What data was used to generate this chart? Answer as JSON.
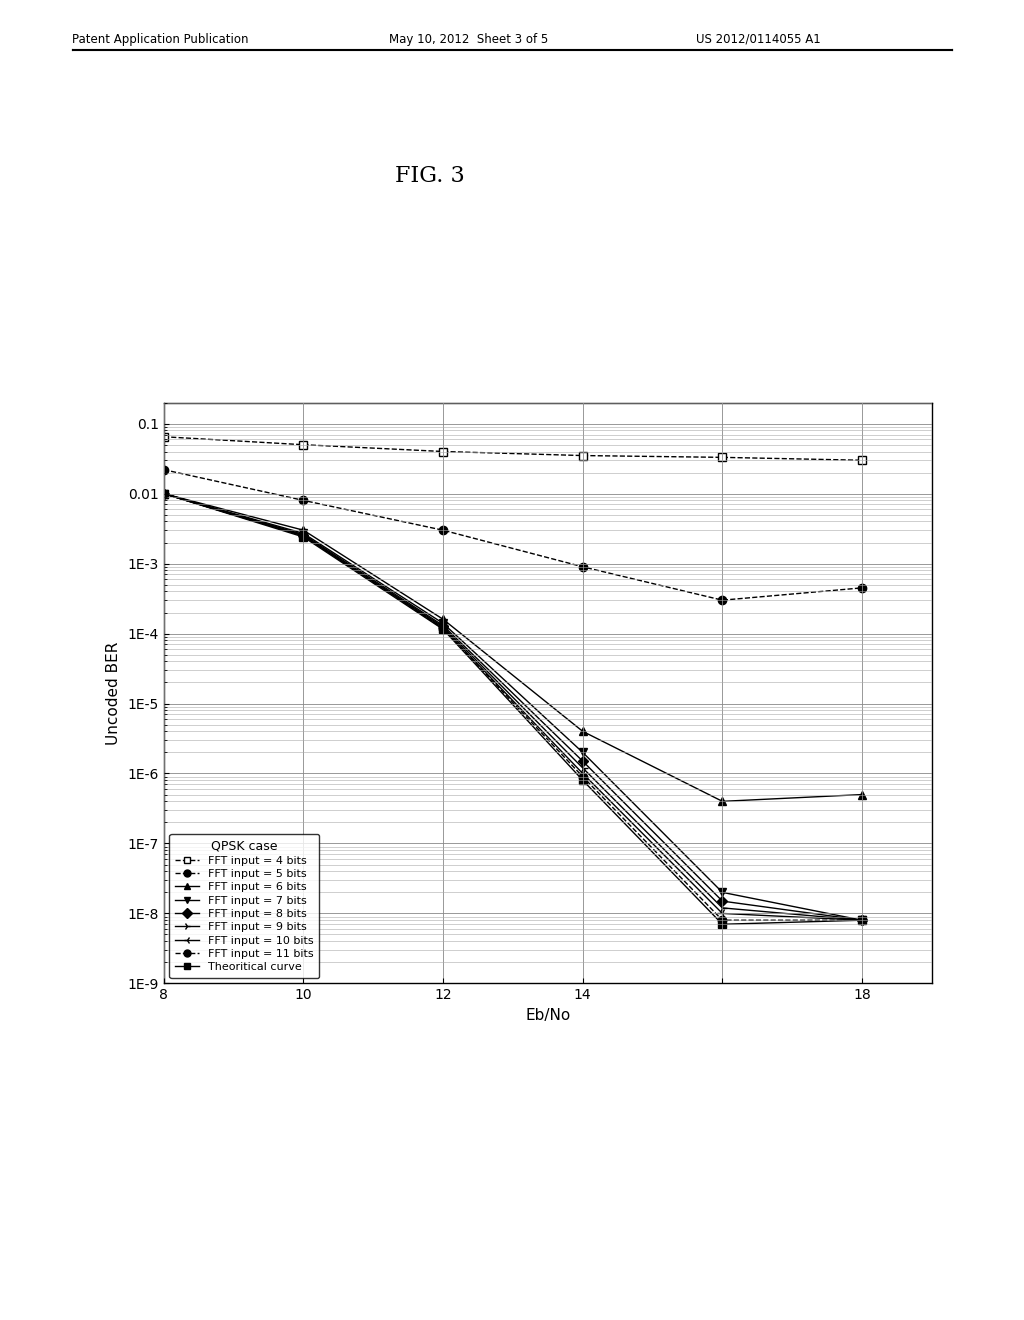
{
  "title": "FIG. 3",
  "header_left": "Patent Application Publication",
  "header_center": "May 10, 2012  Sheet 3 of 5",
  "header_right": "US 2012/0114055 A1",
  "xlabel": "Eb/No",
  "ylabel": "Uncoded BER",
  "xmin": 8,
  "xmax": 19,
  "ymin": 1e-09,
  "ymax": 0.2,
  "legend_title": "QPSK case",
  "series_data": {
    "FFT input = 4 bits": {
      "x": [
        8,
        10,
        12,
        14,
        16,
        18
      ],
      "y": [
        0.065,
        0.05,
        0.04,
        0.035,
        0.033,
        0.03
      ]
    },
    "FFT input = 5 bits": {
      "x": [
        8,
        10,
        12,
        14,
        16,
        18
      ],
      "y": [
        0.022,
        0.008,
        0.003,
        0.0009,
        0.0003,
        0.00045
      ]
    },
    "FFT input = 6 bits": {
      "x": [
        8,
        10,
        12,
        14,
        16,
        18
      ],
      "y": [
        0.01,
        0.003,
        0.00016,
        4e-06,
        4e-07,
        5e-07
      ]
    },
    "FFT input = 7 bits": {
      "x": [
        8,
        10,
        12,
        14,
        16,
        18
      ],
      "y": [
        0.01,
        0.0027,
        0.00014,
        2e-06,
        2e-08,
        8e-09
      ]
    },
    "FFT input = 8 bits": {
      "x": [
        8,
        10,
        12,
        14,
        16,
        18
      ],
      "y": [
        0.01,
        0.0026,
        0.00013,
        1.5e-06,
        1.5e-08,
        8e-09
      ]
    },
    "FFT input = 9 bits": {
      "x": [
        8,
        10,
        12,
        14,
        16,
        18
      ],
      "y": [
        0.01,
        0.0025,
        0.000125,
        1.2e-06,
        1.2e-08,
        8e-09
      ]
    },
    "FFT input = 10 bits": {
      "x": [
        8,
        10,
        12,
        14,
        16,
        18
      ],
      "y": [
        0.01,
        0.0025,
        0.00012,
        1e-06,
        1e-08,
        8e-09
      ]
    },
    "FFT input = 11 bits": {
      "x": [
        8,
        10,
        12,
        14,
        16,
        18
      ],
      "y": [
        0.01,
        0.0025,
        0.000118,
        9e-07,
        8e-09,
        8e-09
      ]
    },
    "Theoritical curve": {
      "x": [
        8,
        10,
        12,
        14,
        16,
        18
      ],
      "y": [
        0.01,
        0.0024,
        0.000115,
        8e-07,
        7e-09,
        8e-09
      ]
    }
  },
  "series_order": [
    "FFT input = 4 bits",
    "FFT input = 5 bits",
    "FFT input = 6 bits",
    "FFT input = 7 bits",
    "FFT input = 8 bits",
    "FFT input = 9 bits",
    "FFT input = 10 bits",
    "FFT input = 11 bits",
    "Theoritical curve"
  ],
  "markers": {
    "FFT input = 4 bits": {
      "marker": "s",
      "mfc": "white",
      "mec": "black",
      "ms": 6,
      "ls": "--"
    },
    "FFT input = 5 bits": {
      "marker": "o",
      "mfc": "black",
      "mec": "black",
      "ms": 6,
      "ls": "--"
    },
    "FFT input = 6 bits": {
      "marker": "^",
      "mfc": "black",
      "mec": "black",
      "ms": 6,
      "ls": "-"
    },
    "FFT input = 7 bits": {
      "marker": "v",
      "mfc": "black",
      "mec": "black",
      "ms": 6,
      "ls": "-"
    },
    "FFT input = 8 bits": {
      "marker": "D",
      "mfc": "black",
      "mec": "black",
      "ms": 5,
      "ls": "-"
    },
    "FFT input = 9 bits": {
      "marker": "4",
      "mfc": "black",
      "mec": "black",
      "ms": 7,
      "ls": "-"
    },
    "FFT input = 10 bits": {
      "marker": "3",
      "mfc": "black",
      "mec": "black",
      "ms": 7,
      "ls": "-"
    },
    "FFT input = 11 bits": {
      "marker": "o",
      "mfc": "black",
      "mec": "black",
      "ms": 6,
      "ls": "--"
    },
    "Theoritical curve": {
      "marker": "s",
      "mfc": "black",
      "mec": "black",
      "ms": 6,
      "ls": "-"
    }
  },
  "legend_markers": [
    {
      "marker": "s",
      "mfc": "white",
      "mec": "black",
      "ls": "--",
      "label": "FFT input = 4 bits"
    },
    {
      "marker": "o",
      "mfc": "black",
      "mec": "black",
      "ls": "--",
      "label": "FFT input = 5 bits"
    },
    {
      "marker": "^",
      "mfc": "black",
      "mec": "black",
      "ls": "-",
      "label": "FFT input = 6 bits"
    },
    {
      "marker": "v",
      "mfc": "black",
      "mec": "black",
      "ls": "-",
      "label": "FFT input = 7 bits"
    },
    {
      "marker": "D",
      "mfc": "black",
      "mec": "black",
      "ls": "-",
      "label": "FFT input = 8 bits"
    },
    {
      "marker": "4",
      "mfc": "black",
      "mec": "black",
      "ls": "-",
      "label": "FFT input = 9 bits"
    },
    {
      "marker": "3",
      "mfc": "black",
      "mec": "black",
      "ls": "-",
      "label": "FFT input = 10 bits"
    },
    {
      "marker": "o",
      "mfc": "black",
      "mec": "black",
      "ls": "--",
      "label": "FFT input = 11 bits"
    },
    {
      "marker": "s",
      "mfc": "black",
      "mec": "black",
      "ls": "-",
      "label": "Theoritical curve"
    }
  ]
}
